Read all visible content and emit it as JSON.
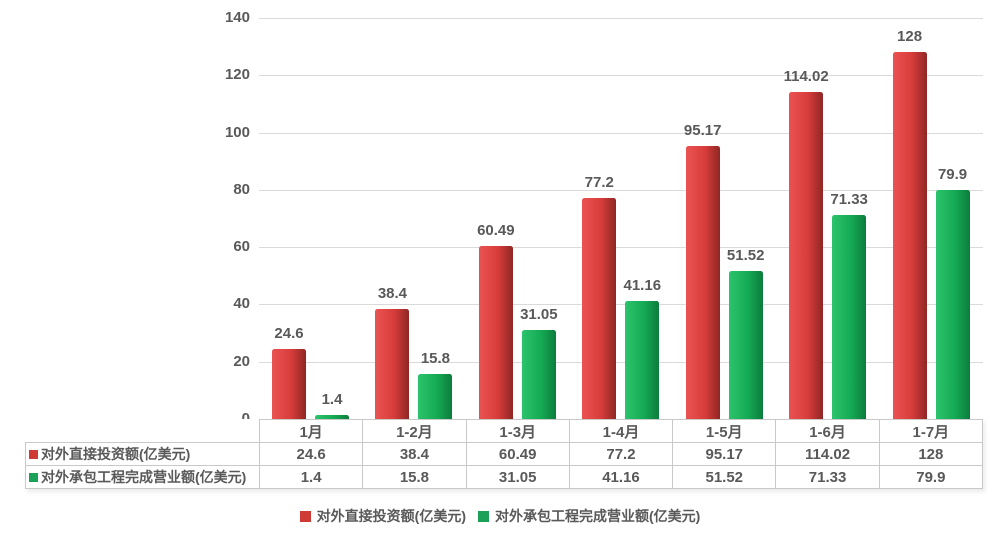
{
  "chart_data": {
    "type": "bar",
    "title": "",
    "xlabel": "",
    "ylabel": "",
    "categories": [
      "1月",
      "1-2月",
      "1-3月",
      "1-4月",
      "1-5月",
      "1-6月",
      "1-7月"
    ],
    "series": [
      {
        "name": "对外直接投资额(亿美元)",
        "values": [
          24.6,
          38.4,
          60.49,
          77.2,
          95.17,
          114.02,
          128
        ],
        "color": "#cf3a35",
        "gradient": [
          "#ea5352",
          "#d83d3b",
          "#8f2724"
        ]
      },
      {
        "name": "对外承包工程完成营业额(亿美元)",
        "values": [
          1.4,
          15.8,
          31.05,
          41.16,
          51.52,
          71.33,
          79.9
        ],
        "color": "#1ba158",
        "gradient": [
          "#2cc36d",
          "#15ab54",
          "#0c7c3d"
        ]
      }
    ],
    "ylim": [
      0,
      140
    ],
    "yticks": [
      0,
      20,
      40,
      60,
      80,
      100,
      120,
      140
    ],
    "grid": true,
    "value_labels": true,
    "legend_position": "bottom"
  },
  "colors": {
    "text": "#595959",
    "grid": "#dadada",
    "table_border": "#c9c9c9",
    "background": "#ffffff"
  }
}
